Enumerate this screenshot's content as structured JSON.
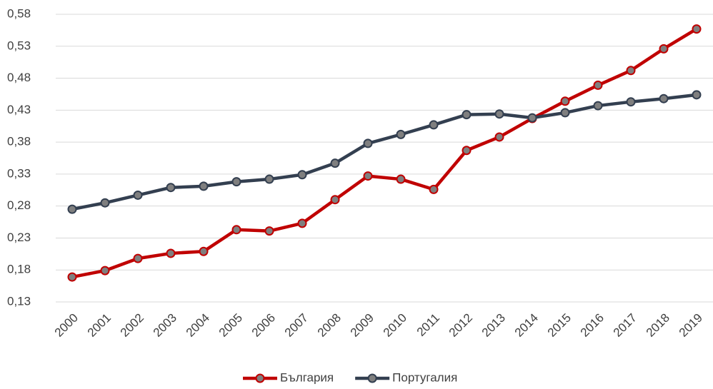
{
  "chart_data": {
    "type": "line",
    "categories": [
      "2000",
      "2001",
      "2002",
      "2003",
      "2004",
      "2005",
      "2006",
      "2007",
      "2008",
      "2009",
      "2010",
      "2011",
      "2012",
      "2013",
      "2014",
      "2015",
      "2016",
      "2017",
      "2018",
      "2019"
    ],
    "series": [
      {
        "name": "България",
        "color": "#c00000",
        "marker_color": "#7f7f7f",
        "values": [
          0.169,
          0.179,
          0.198,
          0.206,
          0.209,
          0.243,
          0.241,
          0.253,
          0.29,
          0.327,
          0.322,
          0.306,
          0.367,
          0.388,
          0.417,
          0.444,
          0.469,
          0.492,
          0.526,
          0.557
        ]
      },
      {
        "name": "Португалия",
        "color": "#333f50",
        "marker_color": "#7f7f7f",
        "values": [
          0.275,
          0.285,
          0.297,
          0.309,
          0.311,
          0.318,
          0.322,
          0.329,
          0.347,
          0.378,
          0.392,
          0.407,
          0.423,
          0.424,
          0.418,
          0.426,
          0.437,
          0.443,
          0.448,
          0.454
        ]
      }
    ],
    "ylim": [
      0.13,
      0.58
    ],
    "yticks": [
      {
        "value": 0.13,
        "label": "0,13"
      },
      {
        "value": 0.18,
        "label": "0,18"
      },
      {
        "value": 0.23,
        "label": "0,23"
      },
      {
        "value": 0.28,
        "label": "0,28"
      },
      {
        "value": 0.33,
        "label": "0,33"
      },
      {
        "value": 0.38,
        "label": "0,38"
      },
      {
        "value": 0.43,
        "label": "0,43"
      },
      {
        "value": 0.48,
        "label": "0,48"
      },
      {
        "value": 0.53,
        "label": "0,53"
      },
      {
        "value": 0.58,
        "label": "0,58"
      }
    ],
    "grid": true,
    "legend": "bottom"
  }
}
